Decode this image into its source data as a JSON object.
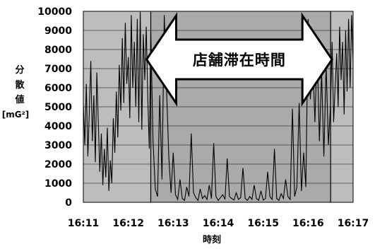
{
  "chart_data": {
    "type": "line",
    "title": "",
    "xlabel": "時刻",
    "ylabel_lines": [
      "分",
      "散",
      "値"
    ],
    "ylabel_unit": "[mG²]",
    "ylim": [
      0,
      10000
    ],
    "y_ticks": [
      0,
      1000,
      2000,
      3000,
      4000,
      5000,
      6000,
      7000,
      8000,
      9000,
      10000
    ],
    "y_tick_labels": [
      "0",
      "1000",
      "2000",
      "3000",
      "4000",
      "5000",
      "6000",
      "7000",
      "8000",
      "9000",
      "10000"
    ],
    "x_tick_labels": [
      "16:11",
      "16:12",
      "16:13",
      "16:14",
      "16:15",
      "16:16",
      "16:17"
    ],
    "xlim": [
      "16:11",
      "16:17"
    ],
    "grid": true,
    "annotation": {
      "text": "店舗滞在時間",
      "start": "16:12:30",
      "end": "16:16:30"
    },
    "series": [
      {
        "x": [
          "16:11:00",
          "16:11:02",
          "16:11:04",
          "16:11:06",
          "16:11:08",
          "16:11:10",
          "16:11:12",
          "16:11:14",
          "16:11:16",
          "16:11:18",
          "16:11:20",
          "16:11:22",
          "16:11:24",
          "16:11:26",
          "16:11:28",
          "16:11:30",
          "16:11:32",
          "16:11:34",
          "16:11:36",
          "16:11:38",
          "16:11:40",
          "16:11:42",
          "16:11:44",
          "16:11:46",
          "16:11:48",
          "16:11:50",
          "16:11:52",
          "16:11:54",
          "16:11:56",
          "16:11:58",
          "16:12:00",
          "16:12:02",
          "16:12:04",
          "16:12:06",
          "16:12:08",
          "16:12:10",
          "16:12:12",
          "16:12:14",
          "16:12:16",
          "16:12:18",
          "16:12:20",
          "16:12:22",
          "16:12:24",
          "16:12:26",
          "16:12:28",
          "16:12:30",
          "16:12:33",
          "16:12:36",
          "16:12:39",
          "16:12:42",
          "16:12:45",
          "16:12:48",
          "16:12:51",
          "16:12:54",
          "16:12:57",
          "16:13:00",
          "16:13:03",
          "16:13:06",
          "16:13:09",
          "16:13:12",
          "16:13:15",
          "16:13:18",
          "16:13:21",
          "16:13:24",
          "16:13:27",
          "16:13:30",
          "16:13:33",
          "16:13:36",
          "16:13:39",
          "16:13:42",
          "16:13:45",
          "16:13:48",
          "16:13:51",
          "16:13:54",
          "16:13:57",
          "16:14:00",
          "16:14:03",
          "16:14:06",
          "16:14:09",
          "16:14:12",
          "16:14:15",
          "16:14:18",
          "16:14:21",
          "16:14:24",
          "16:14:27",
          "16:14:30",
          "16:14:33",
          "16:14:36",
          "16:14:39",
          "16:14:42",
          "16:14:45",
          "16:14:48",
          "16:14:51",
          "16:14:54",
          "16:14:57",
          "16:15:00",
          "16:15:03",
          "16:15:06",
          "16:15:09",
          "16:15:12",
          "16:15:15",
          "16:15:18",
          "16:15:21",
          "16:15:24",
          "16:15:27",
          "16:15:30",
          "16:15:33",
          "16:15:36",
          "16:15:39",
          "16:15:42",
          "16:15:45",
          "16:15:48",
          "16:15:51",
          "16:15:54",
          "16:15:57",
          "16:16:00",
          "16:16:03",
          "16:16:06",
          "16:16:09",
          "16:16:12",
          "16:16:15",
          "16:16:18",
          "16:16:21",
          "16:16:24",
          "16:16:27",
          "16:16:30",
          "16:16:32",
          "16:16:34",
          "16:16:36",
          "16:16:38",
          "16:16:40",
          "16:16:42",
          "16:16:44",
          "16:16:46",
          "16:16:48",
          "16:16:50",
          "16:16:52",
          "16:16:54",
          "16:16:56",
          "16:16:58",
          "16:17:00"
        ],
        "y": [
          5200,
          3000,
          6200,
          2400,
          4800,
          7400,
          3200,
          5600,
          2100,
          6800,
          4200,
          1600,
          3600,
          900,
          2800,
          1300,
          3900,
          600,
          2200,
          1000,
          4400,
          2600,
          5800,
          3400,
          7200,
          4800,
          8600,
          5200,
          9400,
          6200,
          7600,
          4400,
          9800,
          6000,
          8400,
          5000,
          9600,
          4200,
          10000,
          3800,
          8800,
          6400,
          9200,
          5400,
          2800,
          9000,
          3200,
          700,
          300,
          5600,
          1200,
          9800,
          6000,
          2400,
          500,
          2600,
          400,
          150,
          1200,
          200,
          100,
          800,
          300,
          3600,
          500,
          250,
          100,
          700,
          200,
          350,
          150,
          900,
          200,
          3100,
          300,
          100,
          250,
          400,
          150,
          2300,
          300,
          200,
          120,
          500,
          150,
          250,
          1800,
          200,
          100,
          300,
          150,
          900,
          200,
          100,
          600,
          120,
          200,
          1600,
          300,
          150,
          2800,
          200,
          100,
          450,
          200,
          1200,
          300,
          150,
          4900,
          300,
          800,
          5200,
          600,
          2600,
          800,
          9600,
          5400,
          7600,
          4200,
          8000,
          3200,
          6800,
          2400,
          7200,
          3000,
          5200,
          8400,
          4200,
          6000,
          7800,
          5000,
          9200,
          6400,
          8400,
          4600,
          9000,
          5800,
          9600,
          6000,
          9800,
          7400
        ]
      }
    ],
    "colors": {
      "plot_bg": "#bdbdbd",
      "stay_bg": "#aaaaaa",
      "line": "#000000",
      "arrow_fill": "#ffffff",
      "arrow_stroke": "#000000",
      "grid": "#000000"
    }
  }
}
